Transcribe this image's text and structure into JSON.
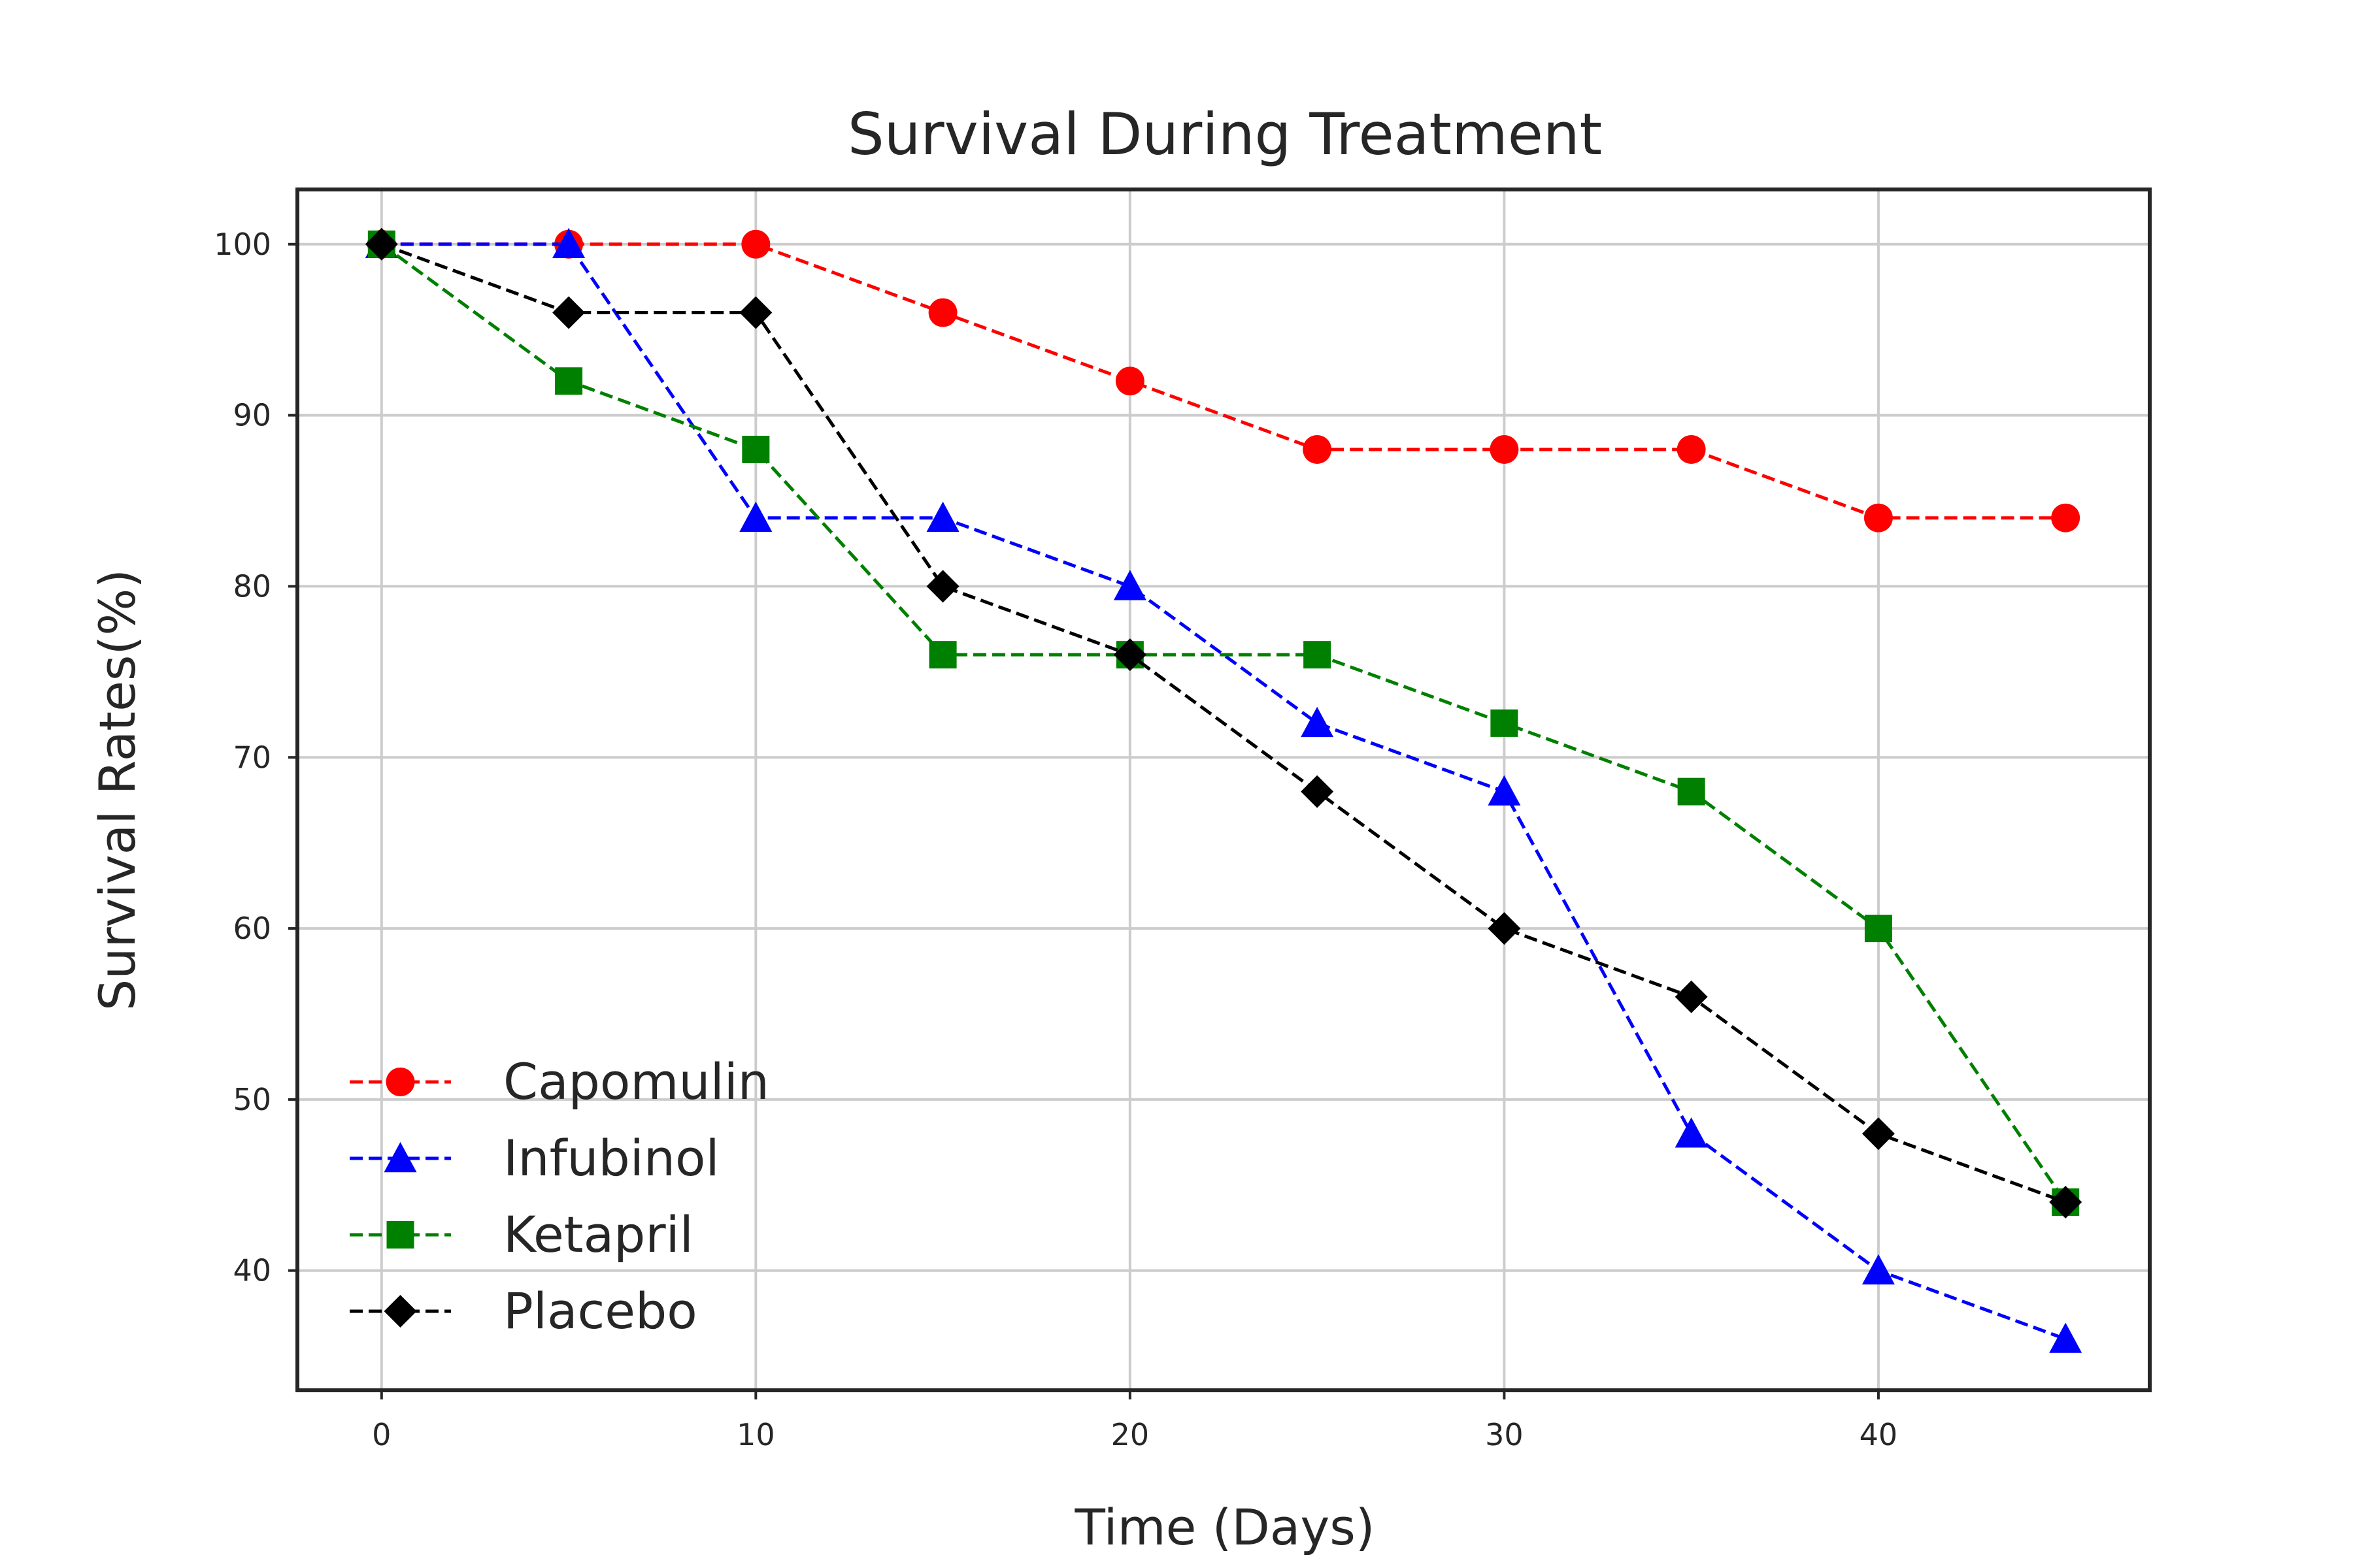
{
  "chart_data": {
    "type": "line",
    "title": "Survival During Treatment",
    "xlabel": "Time (Days)",
    "ylabel": "Survival Rates(%)",
    "x": [
      0,
      5,
      10,
      15,
      20,
      25,
      30,
      35,
      40,
      45
    ],
    "xlim": [
      -2.25,
      47.25
    ],
    "ylim": [
      33,
      103.2
    ],
    "xticks": [
      0,
      10,
      20,
      30,
      40
    ],
    "yticks": [
      40,
      50,
      60,
      70,
      80,
      90,
      100
    ],
    "xtick_labels": [
      "0",
      "10",
      "20",
      "30",
      "40"
    ],
    "ytick_labels": [
      "40",
      "50",
      "60",
      "70",
      "80",
      "90",
      "100"
    ],
    "grid": true,
    "legend_position": "lower-left",
    "line_style": "dashed",
    "series": [
      {
        "name": "Capomulin",
        "color": "#ff0000",
        "marker": "circle",
        "values": [
          100,
          100,
          100,
          96,
          92,
          88,
          88,
          88,
          84,
          84
        ]
      },
      {
        "name": "Infubinol",
        "color": "#0000ff",
        "marker": "triangle",
        "values": [
          100,
          100,
          84,
          84,
          80,
          72,
          68,
          48,
          40,
          36
        ]
      },
      {
        "name": "Ketapril",
        "color": "#008000",
        "marker": "square",
        "values": [
          100,
          92,
          88,
          76,
          76,
          76,
          72,
          68,
          60,
          44
        ]
      },
      {
        "name": "Placebo",
        "color": "#000000",
        "marker": "diamond",
        "values": [
          100,
          96,
          96,
          80,
          76,
          68,
          60,
          56,
          48,
          44
        ]
      }
    ]
  }
}
